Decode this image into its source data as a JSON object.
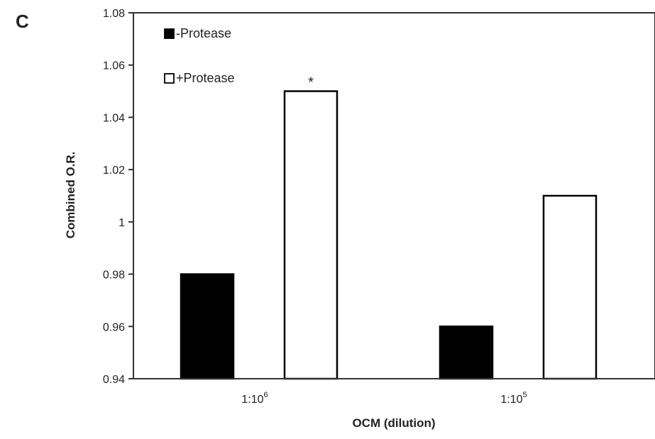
{
  "panel_label": "C",
  "chart_data": {
    "type": "bar",
    "categories": [
      "1:10",
      "1:10"
    ],
    "category_superscripts": [
      "6",
      "5"
    ],
    "series": [
      {
        "name": "-Protease",
        "values": [
          0.98,
          0.96
        ],
        "fill": "#000000",
        "stroke": "#000000"
      },
      {
        "name": "+Protease",
        "values": [
          1.05,
          1.01
        ],
        "fill": "#ffffff",
        "stroke": "#000000"
      }
    ],
    "annotations": [
      {
        "category_index": 0,
        "series_index": 1,
        "text": "*"
      }
    ],
    "xlabel": "OCM (dilution)",
    "ylabel": "Combined O.R.",
    "ylim": [
      0.94,
      1.08
    ],
    "yticks": [
      "0.94",
      "0.96",
      "0.98",
      "1",
      "1.02",
      "1.04",
      "1.06",
      "1.08"
    ],
    "grid": false,
    "legend_position": "top-left"
  }
}
